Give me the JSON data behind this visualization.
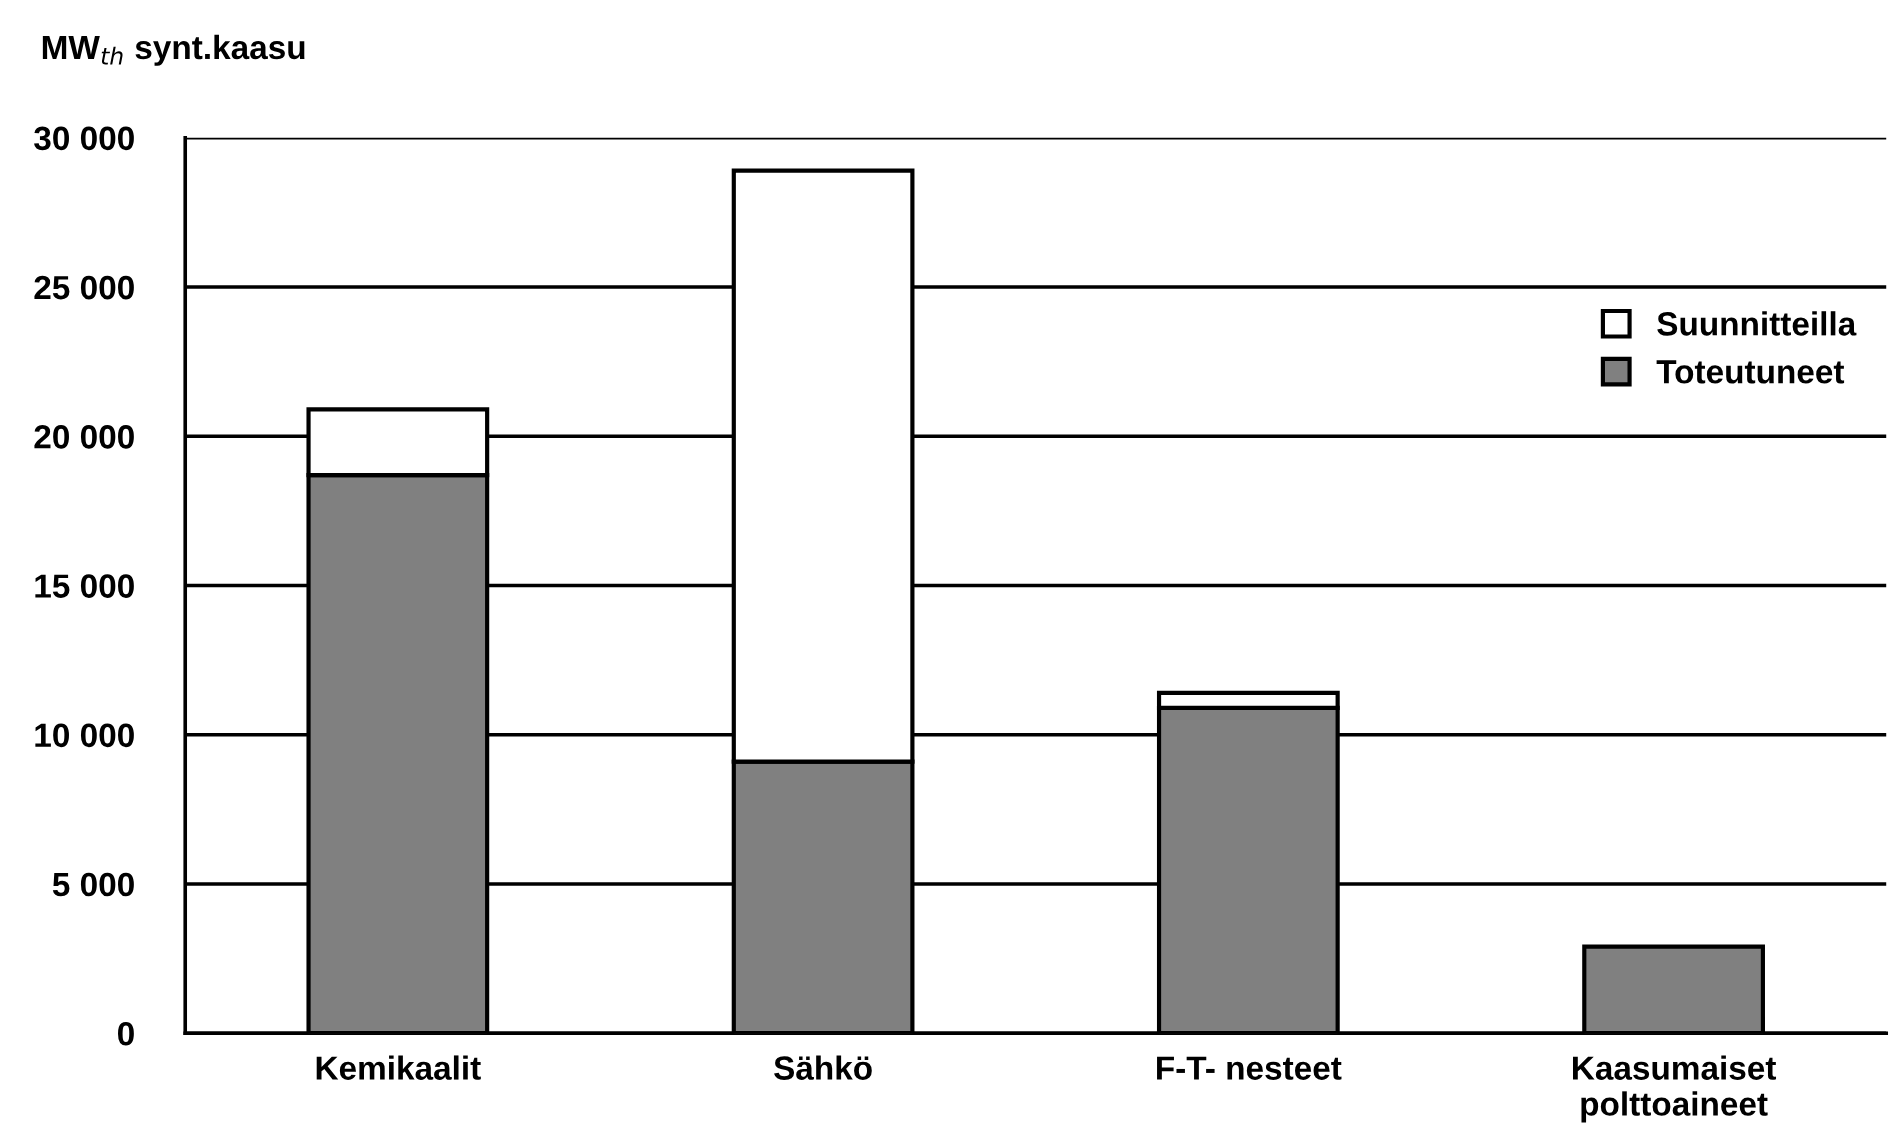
{
  "chart_data": {
    "type": "bar",
    "ylabel": "MW$_{th}$ synt.kaasu",
    "categories": [
      "Kemikaalit",
      "Sähkö",
      "F-T- nesteet",
      "Kaasumaiset\npolttoaineet"
    ],
    "stacked": true,
    "series": [
      {
        "name": "Toteutuneet",
        "color": "#808080",
        "values": [
          18700,
          9100,
          10900,
          2900
        ]
      },
      {
        "name": "Suunnitteilla",
        "color": "#ffffff",
        "values": [
          2200,
          19800,
          500,
          null
        ]
      }
    ],
    "ylim": [
      0,
      30000
    ],
    "yticks": [
      {
        "value": 0,
        "label": "0"
      },
      {
        "value": 5000,
        "label": "5 000"
      },
      {
        "value": 10000,
        "label": "10 000"
      },
      {
        "value": 15000,
        "label": "15 000"
      },
      {
        "value": 20000,
        "label": "20 000"
      },
      {
        "value": 25000,
        "label": "25 000"
      },
      {
        "value": 30000,
        "label": "30 000"
      }
    ],
    "grid": "y",
    "legend": "top right"
  }
}
